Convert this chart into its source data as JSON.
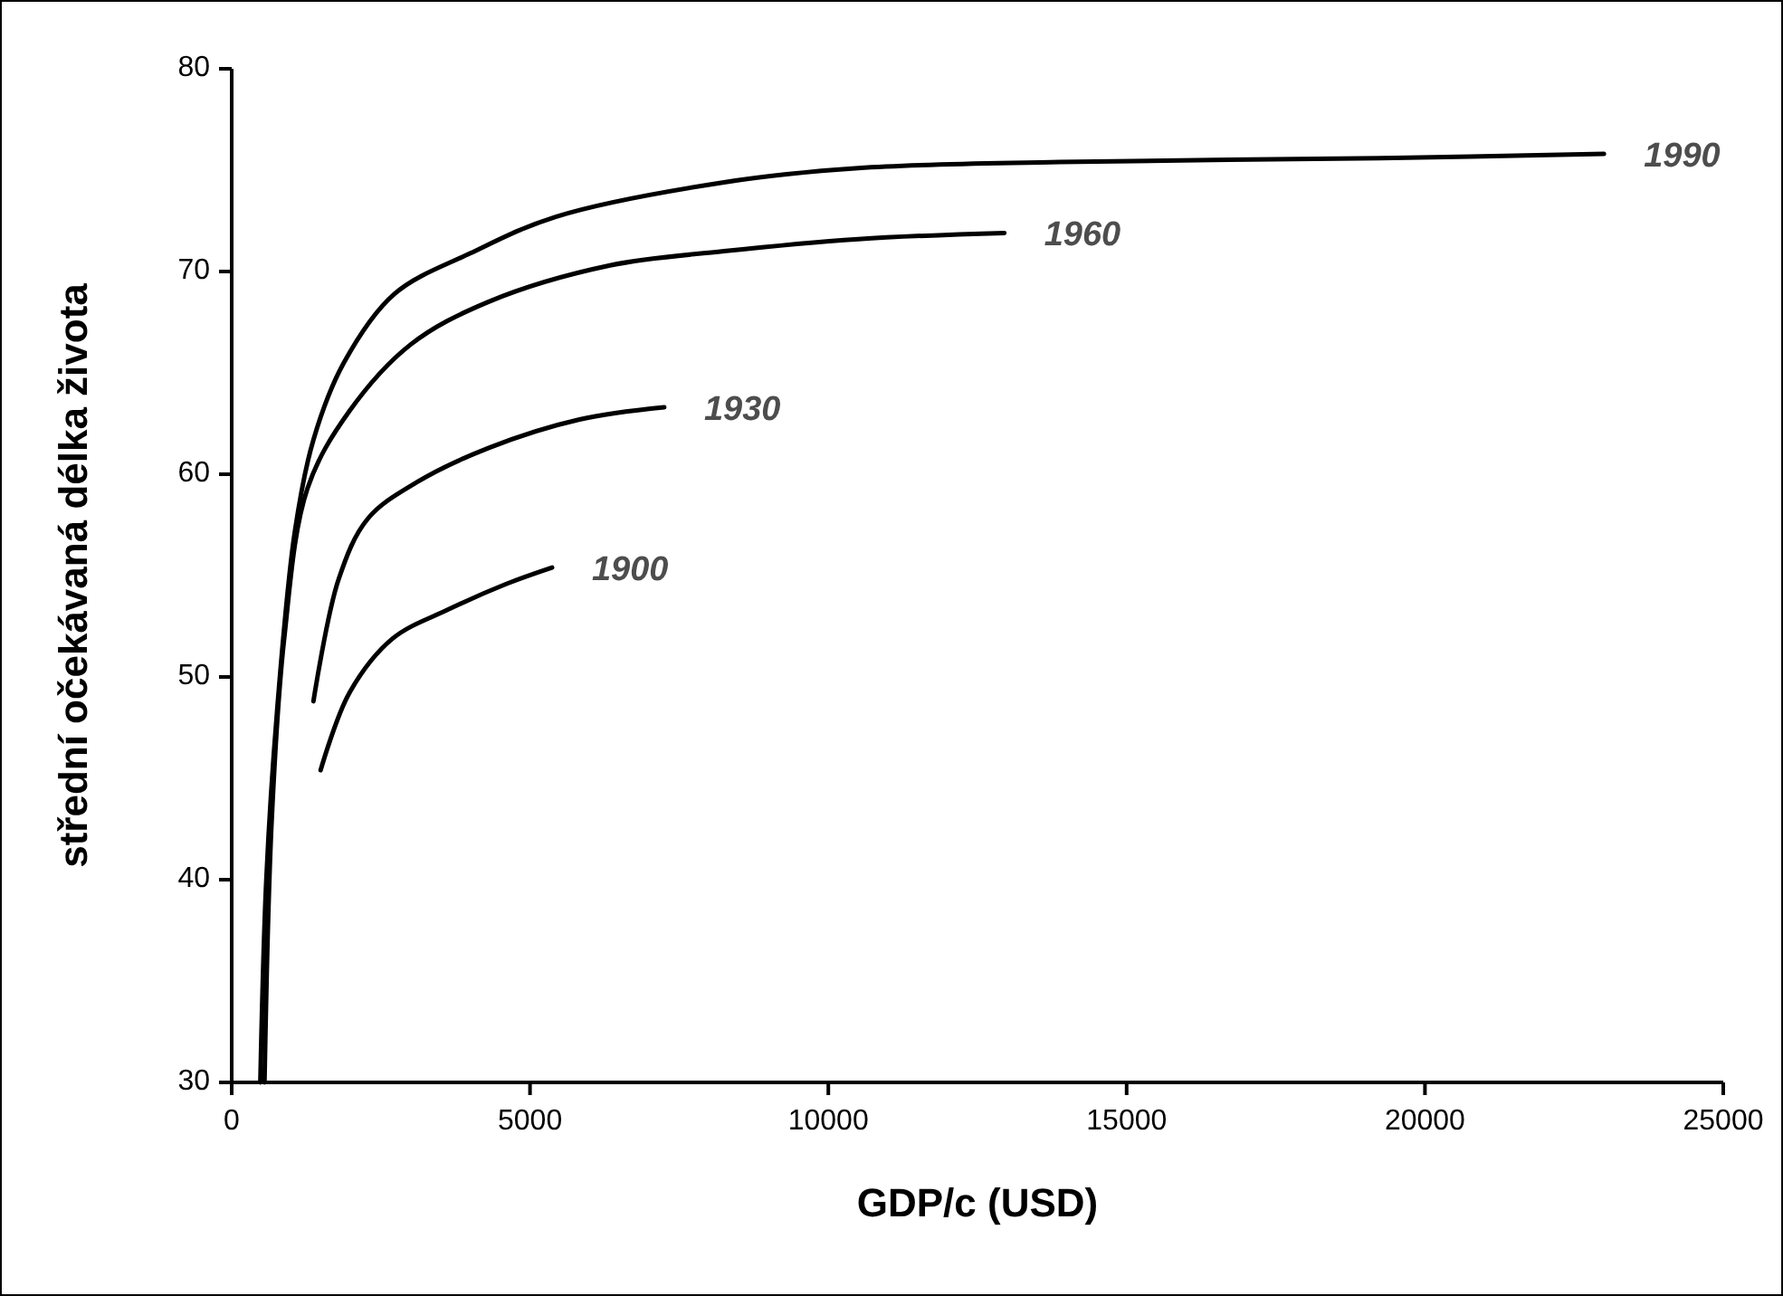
{
  "chart_data": {
    "type": "line",
    "xlabel": "GDP/c (USD)",
    "ylabel": "střední očekávaná délka života",
    "xlim": [
      0,
      25000
    ],
    "xticks": [
      0,
      5000,
      10000,
      15000,
      20000,
      25000
    ],
    "ylim": [
      30,
      80
    ],
    "yticks": [
      30,
      40,
      50,
      60,
      70,
      80
    ],
    "grid": false,
    "marker": "none",
    "line_style": "solid",
    "series": [
      {
        "name": "1990",
        "color": "#000000",
        "x": [
          480,
          580,
          760,
          1060,
          1370,
          1880,
          2730,
          4000,
          5430,
          8250,
          10500,
          13870,
          19480,
          23000
        ],
        "values": [
          30,
          40,
          48.3,
          57.2,
          61.7,
          65.5,
          68.9,
          70.9,
          72.7,
          74.4,
          75.1,
          75.4,
          75.6,
          75.8
        ]
      },
      {
        "name": "1960",
        "color": "#000000",
        "x": [
          550,
          670,
          880,
          1270,
          1970,
          3000,
          4300,
          6340,
          8250,
          10500,
          12950
        ],
        "values": [
          30,
          42.9,
          51.9,
          59.3,
          63.1,
          66.4,
          68.5,
          70.3,
          71,
          71.6,
          71.9
        ]
      },
      {
        "name": "1930",
        "color": "#000000",
        "x": [
          1370,
          1790,
          2280,
          3100,
          4310,
          5830,
          7250
        ],
        "values": [
          48.8,
          54.8,
          57.8,
          59.6,
          61.3,
          62.7,
          63.3
        ]
      },
      {
        "name": "1900",
        "color": "#000000",
        "x": [
          1490,
          1970,
          2700,
          3610,
          4610,
          5370
        ],
        "values": [
          45.4,
          49.2,
          51.9,
          53.3,
          54.6,
          55.4
        ]
      }
    ]
  }
}
